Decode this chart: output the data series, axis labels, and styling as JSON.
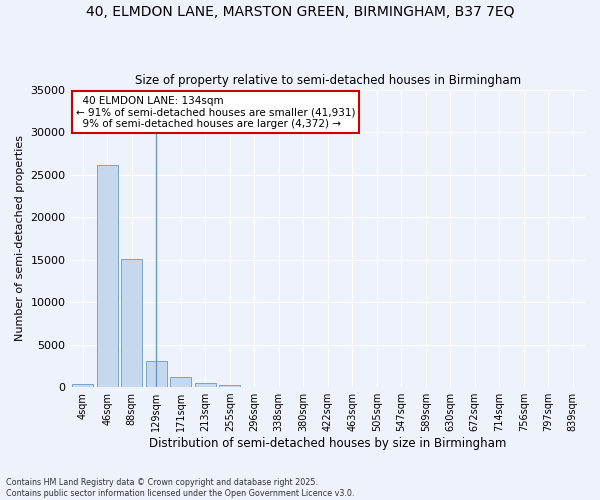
{
  "title_line1": "40, ELMDON LANE, MARSTON GREEN, BIRMINGHAM, B37 7EQ",
  "title_line2": "Size of property relative to semi-detached houses in Birmingham",
  "xlabel": "Distribution of semi-detached houses by size in Birmingham",
  "ylabel": "Number of semi-detached properties",
  "categories": [
    "4sqm",
    "46sqm",
    "88sqm",
    "129sqm",
    "171sqm",
    "213sqm",
    "255sqm",
    "296sqm",
    "338sqm",
    "380sqm",
    "422sqm",
    "463sqm",
    "505sqm",
    "547sqm",
    "589sqm",
    "630sqm",
    "672sqm",
    "714sqm",
    "756sqm",
    "797sqm",
    "839sqm"
  ],
  "values": [
    400,
    26100,
    15100,
    3100,
    1200,
    450,
    200,
    50,
    0,
    0,
    0,
    0,
    0,
    0,
    0,
    0,
    0,
    0,
    0,
    0,
    0
  ],
  "bar_color": "#c5d8ee",
  "bar_edge_color": "#6899c8",
  "property_label": "40 ELMDON LANE: 134sqm",
  "pct_smaller": 91,
  "num_smaller": 41931,
  "pct_larger": 9,
  "num_larger": 4372,
  "annotation_box_facecolor": "#ffffff",
  "annotation_box_edgecolor": "#cc0000",
  "vline_x": 3,
  "ylim": [
    0,
    35000
  ],
  "yticks": [
    0,
    5000,
    10000,
    15000,
    20000,
    25000,
    30000,
    35000
  ],
  "background_color": "#eef2fb",
  "grid_color": "#ffffff",
  "footer_line1": "Contains HM Land Registry data © Crown copyright and database right 2025.",
  "footer_line2": "Contains public sector information licensed under the Open Government Licence v3.0."
}
